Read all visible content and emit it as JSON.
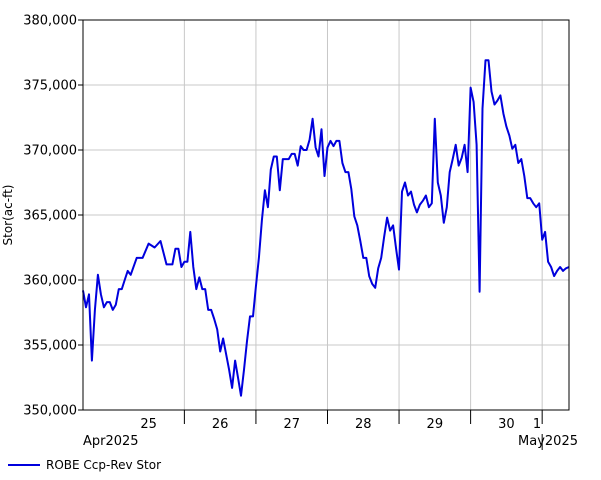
{
  "chart_data": {
    "type": "line",
    "title": "",
    "ylabel": "Stor(ac-ft)",
    "ylim": [
      350000,
      380000
    ],
    "y_ticks": [
      350000,
      355000,
      360000,
      365000,
      370000,
      375000,
      380000
    ],
    "y_tick_labels": [
      "350,000",
      "355,000",
      "360,000",
      "365,000",
      "370,000",
      "375,000",
      "380,000"
    ],
    "x_range_days": [
      "2025-04-24T14:00",
      "2025-05-01T09:00"
    ],
    "day_labels": [
      {
        "label": "25",
        "date": "2025-04-25"
      },
      {
        "label": "26",
        "date": "2025-04-26"
      },
      {
        "label": "27",
        "date": "2025-04-27"
      },
      {
        "label": "28",
        "date": "2025-04-28"
      },
      {
        "label": "29",
        "date": "2025-04-29"
      },
      {
        "label": "30",
        "date": "2025-04-30"
      },
      {
        "label": "1",
        "date": "2025-05-01"
      }
    ],
    "month_labels": [
      {
        "label": "Apr2025",
        "date": "2025-04"
      },
      {
        "label": "May2025",
        "date": "2025-05"
      }
    ],
    "grid": true,
    "legend_position": "bottom-left",
    "series": [
      {
        "name": "ROBE Ccp-Rev Stor",
        "color": "#0000dd",
        "x": [
          "2025-04-24T14:00",
          "2025-04-24T15:00",
          "2025-04-24T16:00",
          "2025-04-24T17:00",
          "2025-04-24T18:00",
          "2025-04-24T19:00",
          "2025-04-24T20:00",
          "2025-04-24T21:00",
          "2025-04-24T22:00",
          "2025-04-24T23:00",
          "2025-04-25T00:00",
          "2025-04-25T01:00",
          "2025-04-25T02:00",
          "2025-04-25T03:00",
          "2025-04-25T04:00",
          "2025-04-25T05:00",
          "2025-04-25T06:00",
          "2025-04-25T08:00",
          "2025-04-25T10:00",
          "2025-04-25T12:00",
          "2025-04-25T14:00",
          "2025-04-25T16:00",
          "2025-04-25T18:00",
          "2025-04-25T20:00",
          "2025-04-25T21:00",
          "2025-04-25T22:00",
          "2025-04-25T23:00",
          "2025-04-26T00:00",
          "2025-04-26T01:00",
          "2025-04-26T02:00",
          "2025-04-26T03:00",
          "2025-04-26T04:00",
          "2025-04-26T05:00",
          "2025-04-26T06:00",
          "2025-04-26T07:00",
          "2025-04-26T08:00",
          "2025-04-26T09:00",
          "2025-04-26T10:00",
          "2025-04-26T11:00",
          "2025-04-26T12:00",
          "2025-04-26T13:00",
          "2025-04-26T14:00",
          "2025-04-26T15:00",
          "2025-04-26T16:00",
          "2025-04-26T17:00",
          "2025-04-26T18:00",
          "2025-04-26T19:00",
          "2025-04-26T20:00",
          "2025-04-26T21:00",
          "2025-04-26T22:00",
          "2025-04-26T23:00",
          "2025-04-27T00:00",
          "2025-04-27T01:00",
          "2025-04-27T02:00",
          "2025-04-27T03:00",
          "2025-04-27T04:00",
          "2025-04-27T05:00",
          "2025-04-27T06:00",
          "2025-04-27T07:00",
          "2025-04-27T08:00",
          "2025-04-27T09:00",
          "2025-04-27T10:00",
          "2025-04-27T11:00",
          "2025-04-27T12:00",
          "2025-04-27T13:00",
          "2025-04-27T14:00",
          "2025-04-27T15:00",
          "2025-04-27T16:00",
          "2025-04-27T17:00",
          "2025-04-27T18:00",
          "2025-04-27T19:00",
          "2025-04-27T20:00",
          "2025-04-27T21:00",
          "2025-04-27T22:00",
          "2025-04-27T23:00",
          "2025-04-28T00:00",
          "2025-04-28T01:00",
          "2025-04-28T02:00",
          "2025-04-28T03:00",
          "2025-04-28T04:00",
          "2025-04-28T05:00",
          "2025-04-28T06:00",
          "2025-04-28T07:00",
          "2025-04-28T08:00",
          "2025-04-28T09:00",
          "2025-04-28T10:00",
          "2025-04-28T11:00",
          "2025-04-28T12:00",
          "2025-04-28T13:00",
          "2025-04-28T14:00",
          "2025-04-28T15:00",
          "2025-04-28T16:00",
          "2025-04-28T17:00",
          "2025-04-28T18:00",
          "2025-04-28T19:00",
          "2025-04-28T20:00",
          "2025-04-28T21:00",
          "2025-04-28T22:00",
          "2025-04-28T23:00",
          "2025-04-29T00:00",
          "2025-04-29T01:00",
          "2025-04-29T02:00",
          "2025-04-29T03:00",
          "2025-04-29T04:00",
          "2025-04-29T05:00",
          "2025-04-29T06:00",
          "2025-04-29T07:00",
          "2025-04-29T08:00",
          "2025-04-29T09:00",
          "2025-04-29T10:00",
          "2025-04-29T11:00",
          "2025-04-29T12:00",
          "2025-04-29T13:00",
          "2025-04-29T14:00",
          "2025-04-29T15:00",
          "2025-04-29T16:00",
          "2025-04-29T17:00",
          "2025-04-29T18:00",
          "2025-04-29T19:00",
          "2025-04-29T20:00",
          "2025-04-29T21:00",
          "2025-04-29T22:00",
          "2025-04-29T23:00",
          "2025-04-30T00:00",
          "2025-04-30T01:00",
          "2025-04-30T02:00",
          "2025-04-30T03:00",
          "2025-04-30T04:00",
          "2025-04-30T05:00",
          "2025-04-30T06:00",
          "2025-04-30T07:00",
          "2025-04-30T08:00",
          "2025-04-30T09:00",
          "2025-04-30T10:00",
          "2025-04-30T11:00",
          "2025-04-30T12:00",
          "2025-04-30T13:00",
          "2025-04-30T14:00",
          "2025-04-30T15:00",
          "2025-04-30T16:00",
          "2025-04-30T17:00",
          "2025-04-30T18:00",
          "2025-04-30T19:00",
          "2025-04-30T20:00",
          "2025-04-30T21:00",
          "2025-04-30T22:00",
          "2025-04-30T23:00",
          "2025-05-01T00:00",
          "2025-05-01T01:00",
          "2025-05-01T02:00",
          "2025-05-01T03:00",
          "2025-05-01T04:00",
          "2025-05-01T05:00",
          "2025-05-01T06:00",
          "2025-05-01T07:00",
          "2025-05-01T08:00",
          "2025-05-01T09:00"
        ],
        "values": [
          359200,
          357900,
          358900,
          353800,
          357700,
          360400,
          358900,
          357900,
          358300,
          358300,
          357700,
          358100,
          359300,
          359300,
          360000,
          360700,
          360400,
          361700,
          361700,
          362800,
          362500,
          363000,
          361200,
          361200,
          362400,
          362400,
          361000,
          361400,
          361400,
          363700,
          361000,
          359300,
          360200,
          359300,
          359300,
          357700,
          357700,
          357000,
          356200,
          354500,
          355500,
          354300,
          353100,
          351700,
          353800,
          352500,
          351100,
          353100,
          355300,
          357200,
          357200,
          359500,
          361700,
          364600,
          366900,
          365600,
          368500,
          369500,
          369500,
          366900,
          369300,
          369300,
          369300,
          369700,
          369700,
          368800,
          370300,
          370000,
          370000,
          370800,
          372400,
          370200,
          369500,
          371600,
          368000,
          370200,
          370700,
          370300,
          370700,
          370700,
          369000,
          368300,
          368300,
          367000,
          364900,
          364200,
          363000,
          361700,
          361700,
          360300,
          359700,
          359400,
          360900,
          361700,
          363300,
          364800,
          363800,
          364200,
          362400,
          360800,
          366800,
          367500,
          366500,
          366800,
          365800,
          365200,
          365800,
          366100,
          366500,
          365600,
          365900,
          372400,
          367500,
          366500,
          364400,
          365600,
          368300,
          369300,
          370400,
          368800,
          369400,
          370400,
          368300,
          374800,
          373700,
          370400,
          359100,
          373200,
          376900,
          376900,
          374500,
          373500,
          373800,
          374200,
          372800,
          371800,
          371100,
          370100,
          370400,
          369000,
          369300,
          368000,
          366300,
          366300,
          365900,
          365600,
          365900,
          363100,
          363700,
          361400,
          361000,
          360300,
          360700,
          361000,
          360700,
          360900,
          361000
        ]
      }
    ]
  }
}
